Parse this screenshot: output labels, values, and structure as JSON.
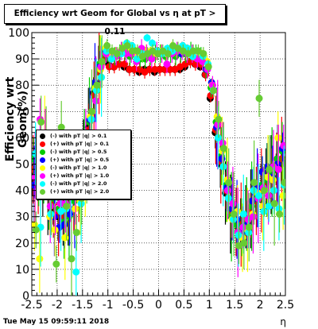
{
  "header": {
    "title": "Efficiency wrt Geom for Global vs   η at pT > 0.11",
    "timestamp": "Tue May 15 09:59:11 2018"
  },
  "chart_data": {
    "type": "scatter",
    "title": "Efficiency wrt Geom for Global vs   η at pT > 0.11",
    "xlabel": "η",
    "ylabel": "Efficiency wrt Geom(%)",
    "xlim": [
      -2.5,
      2.5
    ],
    "ylim": [
      0,
      100
    ],
    "grid": true,
    "legend_position": "middle-left",
    "x_ticks": [
      "-2.5",
      "-2",
      "-1.5",
      "-1",
      "-0.5",
      "0",
      "0.5",
      "1",
      "1.5",
      "2",
      "2.5"
    ],
    "y_ticks": [
      "0",
      "10",
      "20",
      "30",
      "40",
      "50",
      "60",
      "70",
      "80",
      "90",
      "100"
    ],
    "x": [
      -2.45,
      -2.35,
      -2.25,
      -2.15,
      -2.05,
      -1.95,
      -1.85,
      -1.75,
      -1.65,
      -1.55,
      -1.45,
      -1.35,
      -1.25,
      -1.15,
      -1.05,
      -0.95,
      -0.85,
      -0.75,
      -0.65,
      -0.55,
      -0.45,
      -0.35,
      -0.25,
      -0.15,
      -0.05,
      0.05,
      0.15,
      0.25,
      0.35,
      0.45,
      0.55,
      0.65,
      0.75,
      0.85,
      0.95,
      1.05,
      1.15,
      1.25,
      1.35,
      1.45,
      1.55,
      1.65,
      1.75,
      1.85,
      1.95,
      2.05,
      2.15,
      2.25,
      2.35,
      2.45
    ],
    "series": [
      {
        "name": "(-) with pT  |q| > 0.1",
        "color": "#000000",
        "values": [
          44,
          45,
          42,
          38,
          33,
          30,
          31,
          34,
          38,
          45,
          55,
          64,
          77,
          86,
          91,
          88,
          87,
          88,
          87,
          86,
          86,
          85,
          86,
          86,
          85,
          86,
          86,
          86,
          86,
          86,
          87,
          89,
          88,
          87,
          84,
          75,
          62,
          50,
          39,
          31,
          28,
          28,
          30,
          33,
          37,
          41,
          44,
          46,
          48,
          50
        ]
      },
      {
        "name": "(+) with pT  |q| > 0.1",
        "color": "#ff0000",
        "values": [
          48,
          47,
          44,
          40,
          35,
          31,
          30,
          33,
          37,
          44,
          54,
          63,
          76,
          85,
          90,
          87,
          87,
          88,
          88,
          86,
          86,
          86,
          85,
          86,
          86,
          86,
          86,
          86,
          86,
          87,
          88,
          89,
          88,
          88,
          84,
          76,
          63,
          51,
          40,
          32,
          28,
          27,
          29,
          32,
          36,
          40,
          43,
          46,
          49,
          52
        ]
      },
      {
        "name": "(-) with pT  |q| > 0.5",
        "color": "#00cc00",
        "values": [
          52,
          45,
          49,
          42,
          37,
          33,
          28,
          30,
          36,
          42,
          57,
          66,
          79,
          88,
          92,
          90,
          91,
          92,
          93,
          91,
          92,
          90,
          90,
          91,
          92,
          92,
          91,
          92,
          91,
          92,
          92,
          93,
          92,
          91,
          86,
          79,
          66,
          53,
          42,
          30,
          27,
          26,
          31,
          34,
          39,
          42,
          44,
          47,
          52,
          55
        ]
      },
      {
        "name": "(+) with pT  |q| > 0.5",
        "color": "#0000ff",
        "values": [
          42,
          49,
          50,
          40,
          30,
          26,
          27,
          31,
          33,
          46,
          53,
          67,
          81,
          87,
          93,
          91,
          92,
          92,
          93,
          93,
          92,
          92,
          93,
          92,
          92,
          93,
          92,
          93,
          93,
          92,
          93,
          92,
          92,
          91,
          86,
          81,
          64,
          52,
          41,
          33,
          29,
          24,
          27,
          36,
          41,
          47,
          49,
          45,
          50,
          56
        ]
      },
      {
        "name": "(-) with pT  |q| > 1.0",
        "color": "#ffff00",
        "values": [
          27,
          14,
          60,
          30,
          25,
          45,
          22,
          40,
          33,
          36,
          46,
          68,
          79,
          86,
          94,
          91,
          92,
          93,
          95,
          94,
          92,
          92,
          93,
          93,
          92,
          93,
          92,
          94,
          93,
          94,
          93,
          92,
          92,
          91,
          89,
          80,
          68,
          55,
          44,
          29,
          32,
          22,
          25,
          31,
          39,
          34,
          45,
          44,
          60,
          38
        ]
      },
      {
        "name": "(+) with pT  |q| > 1.0",
        "color": "#ff00ff",
        "values": [
          45,
          67,
          60,
          34,
          40,
          35,
          35,
          42,
          44,
          44,
          60,
          62,
          74,
          87,
          92,
          90,
          91,
          93,
          92,
          92,
          89,
          94,
          92,
          90,
          93,
          92,
          88,
          92,
          93,
          93,
          92,
          92,
          90,
          89,
          86,
          80,
          65,
          58,
          40,
          35,
          24,
          26,
          29,
          30,
          37,
          41,
          38,
          49,
          48,
          57
        ]
      },
      {
        "name": "(-) with pT  |q| > 2.0",
        "color": "#00ffff",
        "values": [
          54,
          26,
          56,
          31,
          47,
          32,
          33,
          38,
          9,
          35,
          57,
          67,
          78,
          83,
          93,
          90,
          92,
          92,
          96,
          95,
          90,
          92,
          98,
          96,
          93,
          92,
          94,
          93,
          94,
          95,
          94,
          91,
          93,
          91,
          88,
          78,
          60,
          49,
          37,
          29,
          23,
          31,
          24,
          40,
          38,
          32,
          34,
          40,
          33,
          42
        ]
      },
      {
        "name": "(+) with pT  |q| > 2.0",
        "color": "#66cc33",
        "values": [
          25,
          66,
          59,
          39,
          12,
          64,
          34,
          14,
          24,
          37,
          48,
          70,
          80,
          89,
          95,
          93,
          92,
          94,
          95,
          93,
          93,
          91,
          92,
          93,
          92,
          93,
          92,
          95,
          94,
          93,
          92,
          93,
          93,
          92,
          87,
          78,
          67,
          56,
          43,
          31,
          19,
          20,
          26,
          43,
          75,
          40,
          48,
          35,
          31,
          43
        ]
      }
    ]
  }
}
